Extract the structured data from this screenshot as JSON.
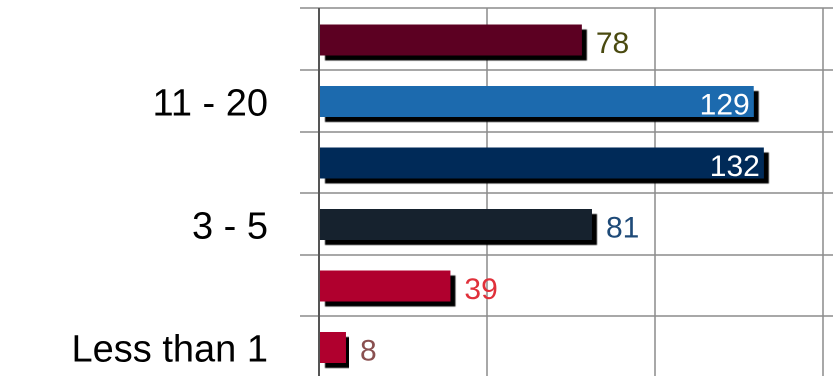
{
  "chart_data": {
    "type": "bar",
    "orientation": "horizontal",
    "categories": [
      "",
      "11 - 20",
      "",
      "3 - 5",
      "",
      "Less than 1"
    ],
    "values": [
      78,
      129,
      132,
      81,
      39,
      8
    ],
    "value_labels": [
      "78",
      "129",
      "132",
      "81",
      "39",
      "8"
    ],
    "bar_colors": [
      "#5c0620",
      "#1e6aae",
      "#042c58",
      "#14202e",
      "#b0062f",
      "#b0062f"
    ],
    "label_colors": [
      "#4a4a10",
      "#ffffff",
      "#ffffff",
      "#1e4a78",
      "#e0303a",
      "#8a5050"
    ],
    "label_inside": [
      false,
      true,
      true,
      false,
      false,
      false
    ],
    "xlim": [
      0,
      143
    ],
    "grid": true,
    "title": "",
    "xlabel": "",
    "ylabel": ""
  }
}
